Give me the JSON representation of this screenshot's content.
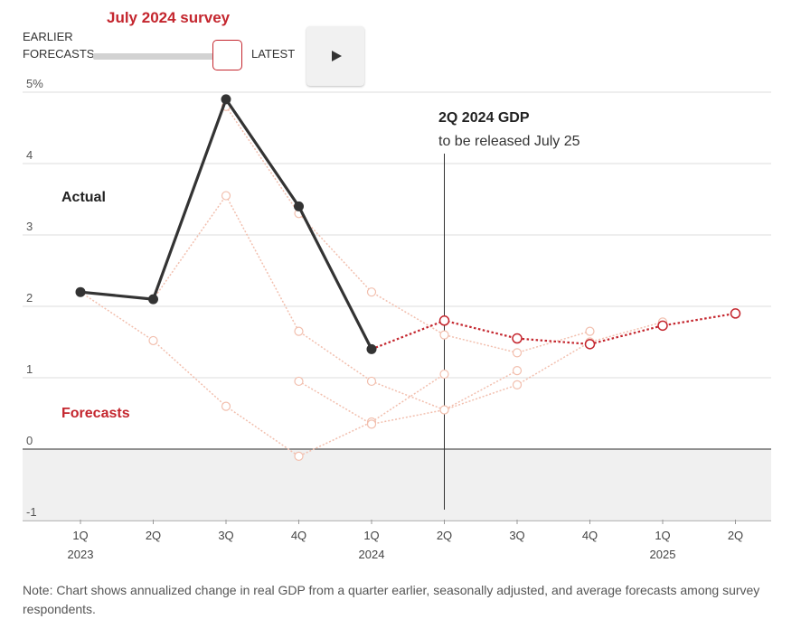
{
  "header": {
    "survey_title": "July 2024 survey",
    "slider_left_label_line1": "EARLIER",
    "slider_left_label_line2": "FORECASTS",
    "slider_right_label": "LATEST",
    "play_icon": "play-icon"
  },
  "annotation": {
    "title": "2Q 2024 GDP",
    "subtitle": "to be released July 25"
  },
  "note": "Note: Chart shows annualized change in real GDP from a quarter earlier, seasonally adjusted, and average forecasts among survey respondents.",
  "colors": {
    "actual": "#333333",
    "forecast": "#c4262e",
    "earlier_forecast": "#f2bfae",
    "negative_band": "#f0f0f0",
    "grid": "#dcdcdc"
  },
  "chart_data": {
    "type": "line",
    "categories": [
      "1Q",
      "2Q",
      "3Q",
      "4Q",
      "1Q",
      "2Q",
      "3Q",
      "4Q",
      "1Q",
      "2Q"
    ],
    "year_labels": [
      {
        "index": 0,
        "label": "2023"
      },
      {
        "index": 4,
        "label": "2024"
      },
      {
        "index": 8,
        "label": "2025"
      }
    ],
    "y_ticks": [
      -1,
      0,
      1,
      2,
      3,
      4,
      5
    ],
    "y_tick_labels": [
      "-1",
      "0",
      "1",
      "2",
      "3",
      "4",
      "5%"
    ],
    "ylim": [
      -1,
      5
    ],
    "grid": true,
    "series_labels": {
      "actual": "Actual",
      "forecasts": "Forecasts"
    },
    "series": [
      {
        "role": "actual",
        "values": [
          2.2,
          2.1,
          4.9,
          3.4,
          1.4,
          null,
          null,
          null,
          null,
          null
        ]
      },
      {
        "role": "forecast",
        "values": [
          null,
          null,
          null,
          null,
          1.4,
          1.8,
          1.55,
          1.47,
          1.73,
          1.9
        ]
      },
      {
        "role": "earlier",
        "values": [
          null,
          null,
          4.8,
          3.3,
          2.2,
          1.6,
          1.35,
          1.65,
          null,
          null
        ]
      },
      {
        "role": "earlier",
        "values": [
          null,
          2.1,
          3.55,
          1.65,
          0.95,
          0.55,
          1.1,
          null,
          null,
          null
        ]
      },
      {
        "role": "earlier",
        "values": [
          2.2,
          1.52,
          0.6,
          -0.1,
          0.38,
          1.05,
          null,
          null,
          null,
          null
        ]
      },
      {
        "role": "earlier",
        "values": [
          null,
          null,
          null,
          0.95,
          0.35,
          0.55,
          0.9,
          1.5,
          1.78,
          null
        ]
      }
    ],
    "release_marker_index": 5
  }
}
